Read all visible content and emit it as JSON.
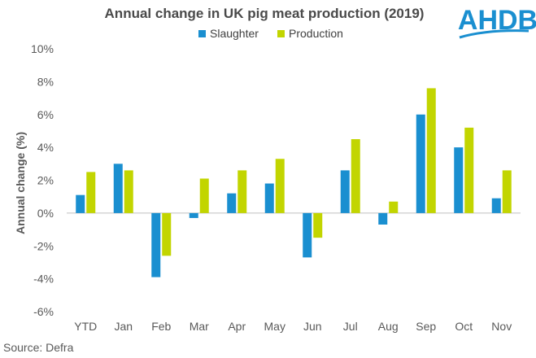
{
  "chart_data": {
    "type": "bar",
    "title": "Annual change in UK pig meat production (2019)",
    "ylabel": "Annual change (%)",
    "xlabel": "",
    "ylim": [
      -6,
      10
    ],
    "yticks": [
      "-6%",
      "-4%",
      "-2%",
      "0%",
      "2%",
      "4%",
      "6%",
      "8%",
      "10%"
    ],
    "ytick_values": [
      -6,
      -4,
      -2,
      0,
      2,
      4,
      6,
      8,
      10
    ],
    "categories": [
      "YTD",
      "Jan",
      "Feb",
      "Mar",
      "Apr",
      "May",
      "Jun",
      "Jul",
      "Aug",
      "Sep",
      "Oct",
      "Nov"
    ],
    "series": [
      {
        "name": "Slaughter",
        "color": "#1a8fd0",
        "values": [
          1.1,
          3.0,
          -3.9,
          -0.3,
          1.2,
          1.8,
          -2.7,
          2.6,
          -0.7,
          6.0,
          4.0,
          0.9
        ]
      },
      {
        "name": "Production",
        "color": "#c2d500",
        "values": [
          2.5,
          2.6,
          -2.6,
          2.1,
          2.6,
          3.3,
          -1.5,
          4.5,
          0.7,
          7.6,
          5.2,
          2.6
        ]
      }
    ],
    "legend_position": "top",
    "grid": false
  },
  "source": "Source: Defra",
  "logo": {
    "text": "AHDB",
    "color": "#1a8fd0"
  }
}
